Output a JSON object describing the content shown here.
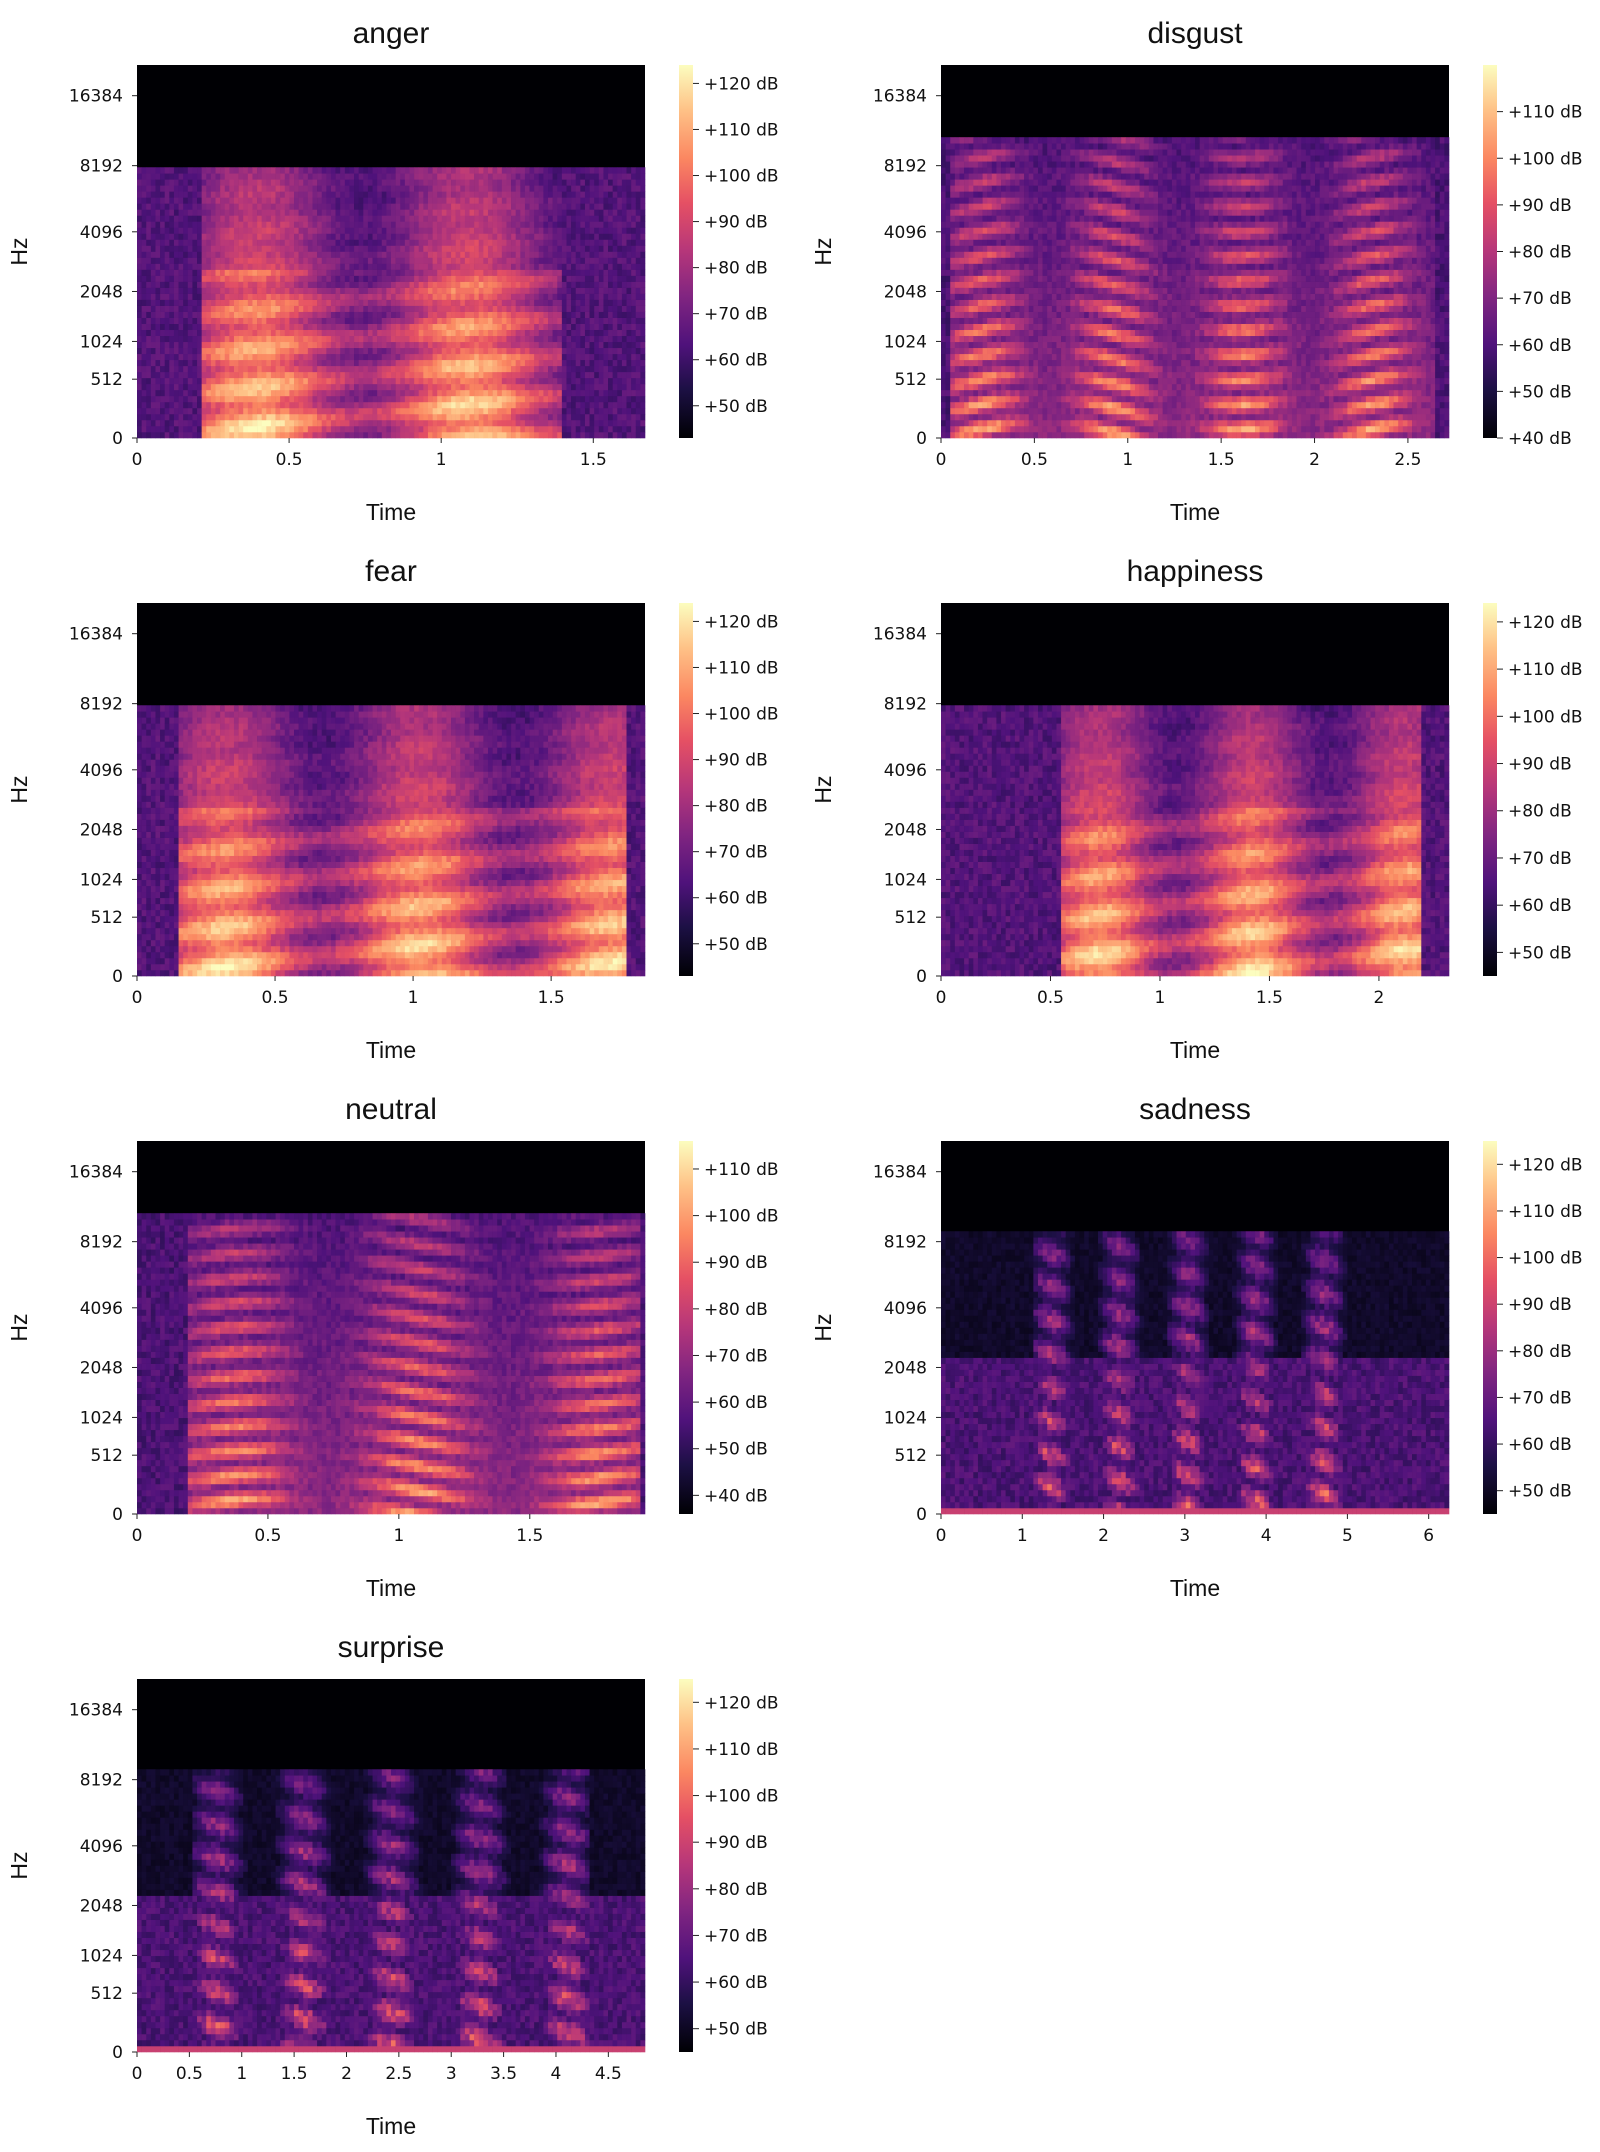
{
  "chart_data": [
    {
      "type": "heatmap",
      "title": "anger",
      "xlabel": "Time",
      "ylabel": "Hz",
      "xlim": [
        0,
        1.67
      ],
      "x_ticks": [
        "0",
        "0.5",
        "1",
        "1.5"
      ],
      "x_tick_values": [
        0,
        0.5,
        1,
        1.5
      ],
      "y_ticks": [
        "0",
        "512",
        "1024",
        "2048",
        "4096",
        "8192",
        "16384"
      ],
      "y_scale": "mel",
      "colormap": "magma",
      "colorbar_ticks": [
        "+50 dB",
        "+60 dB",
        "+70 dB",
        "+80 dB",
        "+90 dB",
        "+100 dB",
        "+110 dB",
        "+120 dB"
      ],
      "colorbar_range": [
        43,
        124
      ],
      "freq_cutoff_hz": 8000,
      "speech_x": [
        0.22,
        1.4
      ],
      "style": "broadband"
    },
    {
      "type": "heatmap",
      "title": "disgust",
      "xlabel": "Time",
      "ylabel": "Hz",
      "xlim": [
        0,
        2.72
      ],
      "x_ticks": [
        "0",
        "0.5",
        "1",
        "1.5",
        "2",
        "2.5"
      ],
      "x_tick_values": [
        0,
        0.5,
        1,
        1.5,
        2,
        2.5
      ],
      "y_ticks": [
        "0",
        "512",
        "1024",
        "2048",
        "4096",
        "8192",
        "16384"
      ],
      "y_scale": "mel",
      "colormap": "magma",
      "colorbar_ticks": [
        "+40 dB",
        "+50 dB",
        "+60 dB",
        "+70 dB",
        "+80 dB",
        "+90 dB",
        "+100 dB",
        "+110 dB"
      ],
      "colorbar_range": [
        40,
        120
      ],
      "freq_cutoff_hz": 11000,
      "speech_x": [
        0.05,
        2.65
      ],
      "style": "harmonic"
    },
    {
      "type": "heatmap",
      "title": "fear",
      "xlabel": "Time",
      "ylabel": "Hz",
      "xlim": [
        0,
        1.84
      ],
      "x_ticks": [
        "0",
        "0.5",
        "1",
        "1.5"
      ],
      "x_tick_values": [
        0,
        0.5,
        1,
        1.5
      ],
      "y_ticks": [
        "0",
        "512",
        "1024",
        "2048",
        "4096",
        "8192",
        "16384"
      ],
      "y_scale": "mel",
      "colormap": "magma",
      "colorbar_ticks": [
        "+50 dB",
        "+60 dB",
        "+70 dB",
        "+80 dB",
        "+90 dB",
        "+100 dB",
        "+110 dB",
        "+120 dB"
      ],
      "colorbar_range": [
        43,
        124
      ],
      "freq_cutoff_hz": 8000,
      "speech_x": [
        0.15,
        1.78
      ],
      "style": "broadband"
    },
    {
      "type": "heatmap",
      "title": "happiness",
      "xlabel": "Time",
      "ylabel": "Hz",
      "xlim": [
        0,
        2.32
      ],
      "x_ticks": [
        "0",
        "0.5",
        "1",
        "1.5",
        "2"
      ],
      "x_tick_values": [
        0,
        0.5,
        1,
        1.5,
        2
      ],
      "y_ticks": [
        "0",
        "512",
        "1024",
        "2048",
        "4096",
        "8192",
        "16384"
      ],
      "y_scale": "mel",
      "colormap": "magma",
      "colorbar_ticks": [
        "+50 dB",
        "+60 dB",
        "+70 dB",
        "+80 dB",
        "+90 dB",
        "+100 dB",
        "+110 dB",
        "+120 dB"
      ],
      "colorbar_range": [
        45,
        124
      ],
      "freq_cutoff_hz": 8000,
      "speech_x": [
        0.55,
        2.2
      ],
      "style": "broadband"
    },
    {
      "type": "heatmap",
      "title": "neutral",
      "xlabel": "Time",
      "ylabel": "Hz",
      "xlim": [
        0,
        1.94
      ],
      "x_ticks": [
        "0",
        "0.5",
        "1",
        "1.5"
      ],
      "x_tick_values": [
        0,
        0.5,
        1,
        1.5
      ],
      "y_ticks": [
        "0",
        "512",
        "1024",
        "2048",
        "4096",
        "8192",
        "16384"
      ],
      "y_scale": "mel",
      "colormap": "magma",
      "colorbar_ticks": [
        "+40 dB",
        "+50 dB",
        "+60 dB",
        "+70 dB",
        "+80 dB",
        "+90 dB",
        "+100 dB",
        "+110 dB"
      ],
      "colorbar_range": [
        36,
        116
      ],
      "freq_cutoff_hz": 11000,
      "speech_x": [
        0.2,
        1.92
      ],
      "style": "harmonic"
    },
    {
      "type": "heatmap",
      "title": "sadness",
      "xlabel": "Time",
      "ylabel": "Hz",
      "xlim": [
        0,
        6.25
      ],
      "x_ticks": [
        "0",
        "1",
        "2",
        "3",
        "4",
        "5",
        "6"
      ],
      "x_tick_values": [
        0,
        1,
        2,
        3,
        4,
        5,
        6
      ],
      "y_ticks": [
        "0",
        "512",
        "1024",
        "2048",
        "4096",
        "8192",
        "16384"
      ],
      "y_scale": "mel",
      "colormap": "magma",
      "colorbar_ticks": [
        "+50 dB",
        "+60 dB",
        "+70 dB",
        "+80 dB",
        "+90 dB",
        "+100 dB",
        "+110 dB",
        "+120 dB"
      ],
      "colorbar_range": [
        45,
        125
      ],
      "freq_cutoff_hz": 9000,
      "speech_x": [
        1.15,
        5.3
      ],
      "style": "sparse"
    },
    {
      "type": "heatmap",
      "title": "surprise",
      "xlabel": "Time",
      "ylabel": "Hz",
      "xlim": [
        0,
        4.85
      ],
      "x_ticks": [
        "0",
        "0.5",
        "1",
        "1.5",
        "2",
        "2.5",
        "3",
        "3.5",
        "4",
        "4.5"
      ],
      "x_tick_values": [
        0,
        0.5,
        1,
        1.5,
        2,
        2.5,
        3,
        3.5,
        4,
        4.5
      ],
      "y_ticks": [
        "0",
        "512",
        "1024",
        "2048",
        "4096",
        "8192",
        "16384"
      ],
      "y_scale": "mel",
      "colormap": "magma",
      "colorbar_ticks": [
        "+50 dB",
        "+60 dB",
        "+70 dB",
        "+80 dB",
        "+90 dB",
        "+100 dB",
        "+110 dB",
        "+120 dB"
      ],
      "colorbar_range": [
        45,
        125
      ],
      "freq_cutoff_hz": 9000,
      "speech_x": [
        0.55,
        4.3
      ],
      "style": "sparse"
    }
  ]
}
